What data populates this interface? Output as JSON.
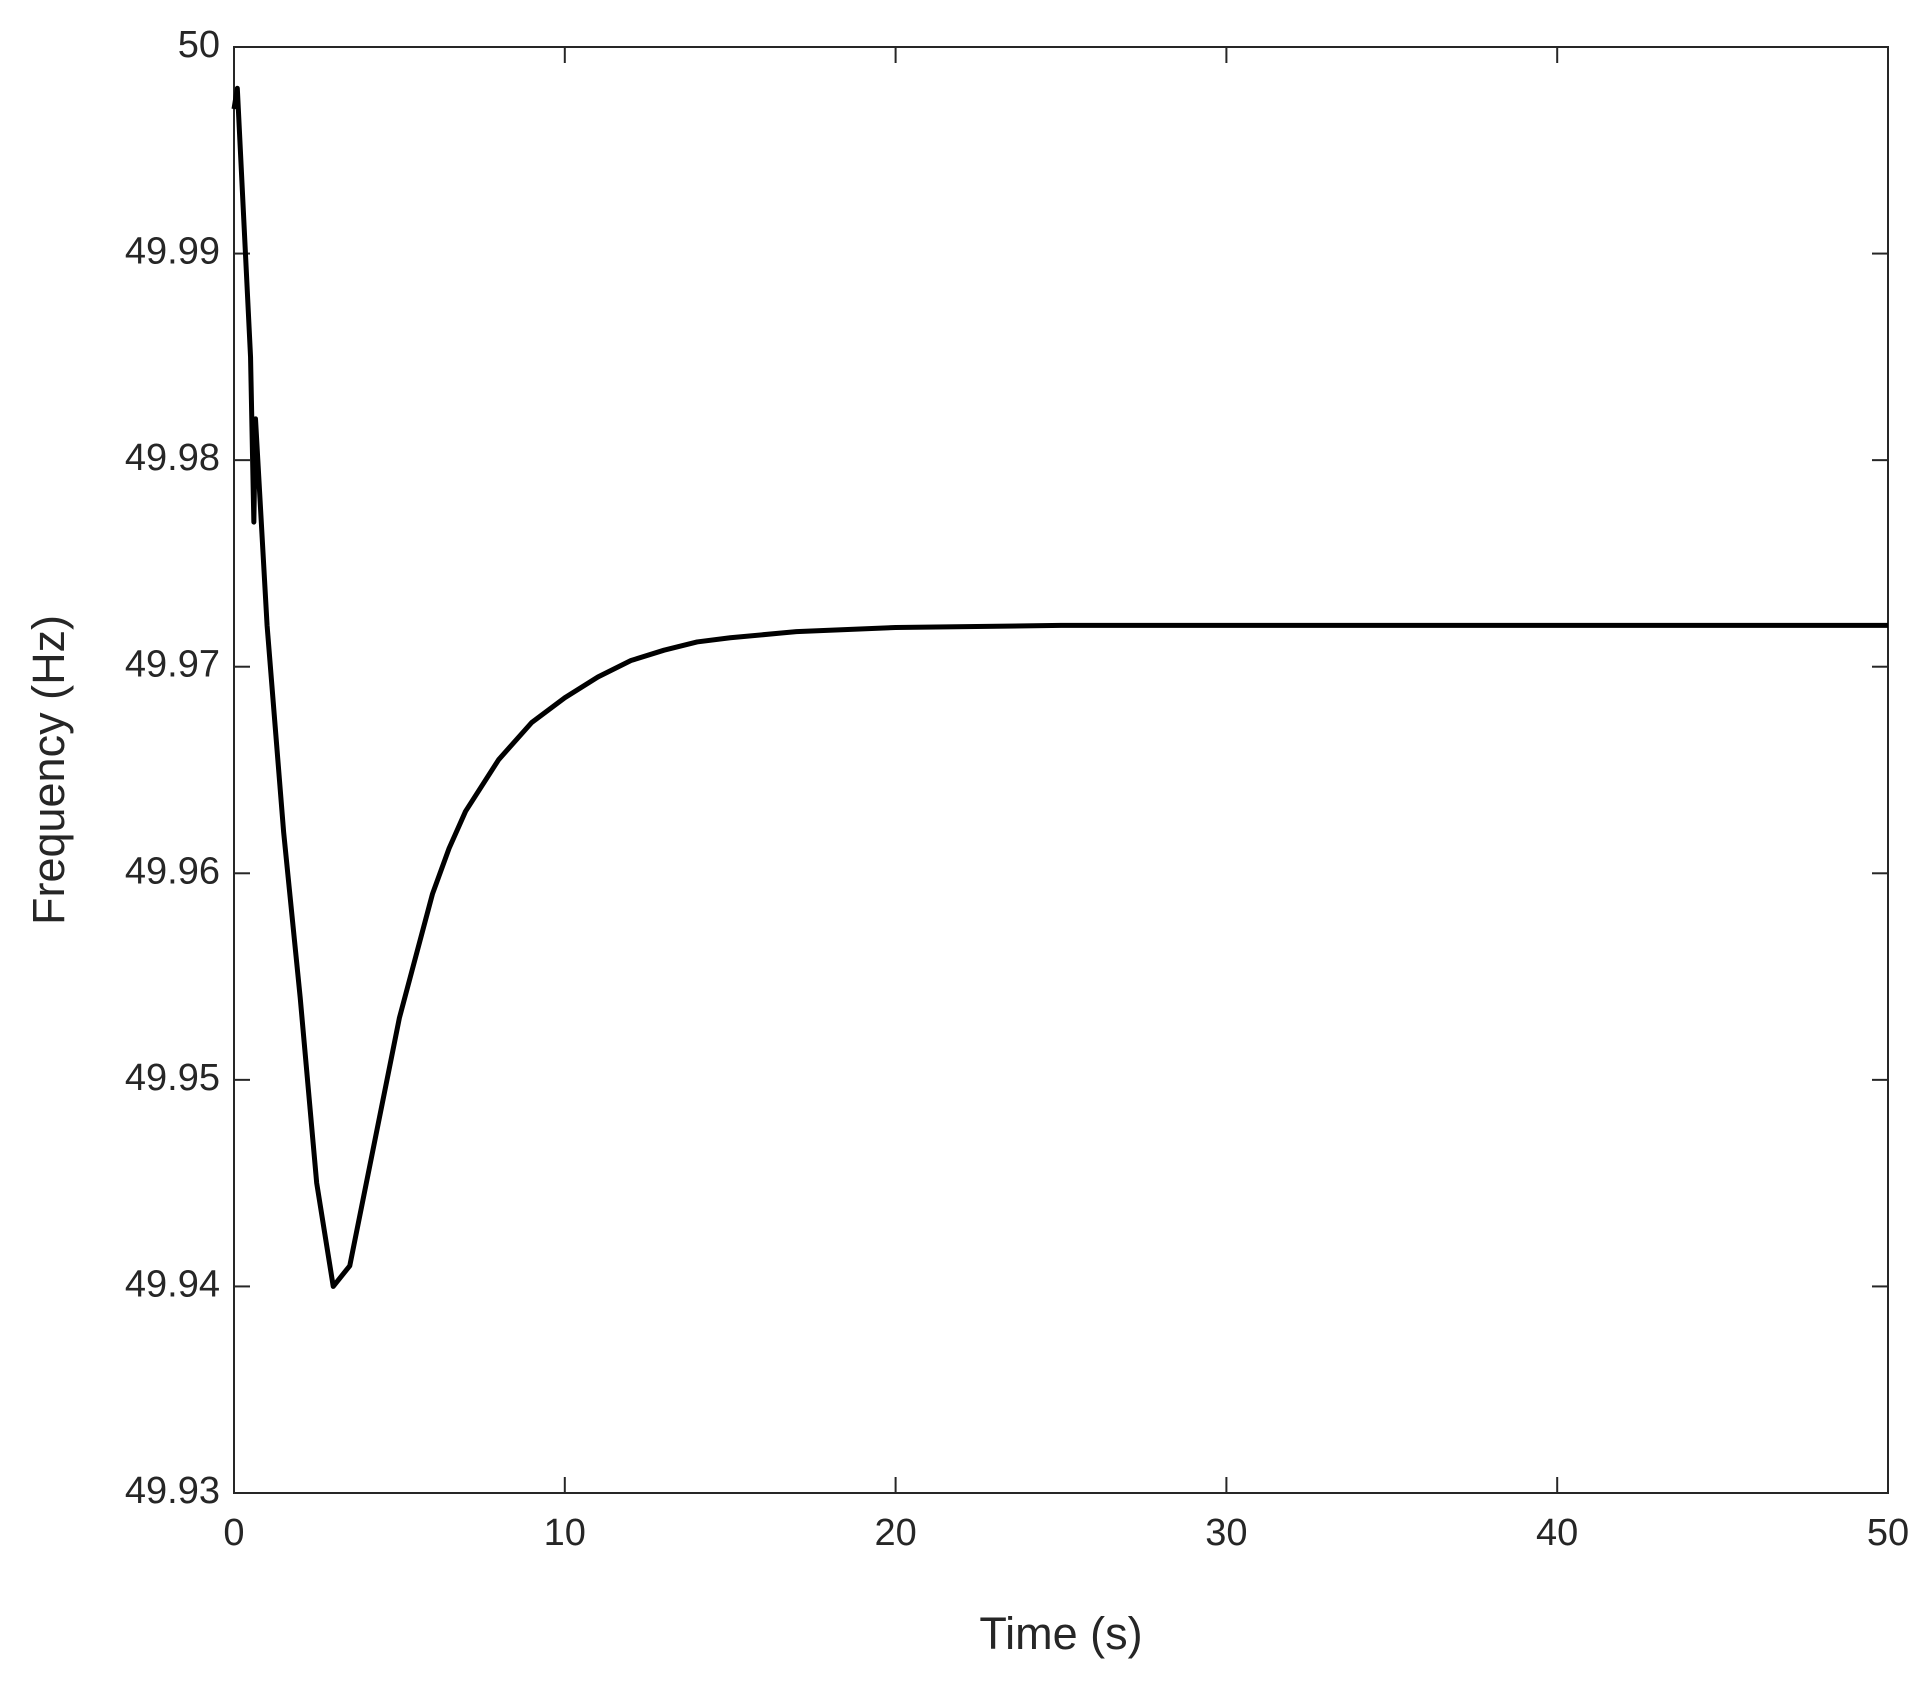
{
  "chart_data": {
    "type": "line",
    "x_label": "Time (s)",
    "y_label": "Frequency (Hz)",
    "x": [
      0,
      0.1,
      0.5,
      0.6,
      0.65,
      1,
      1.5,
      2,
      2.5,
      3,
      3.5,
      4,
      4.5,
      5,
      5.5,
      6,
      6.5,
      7,
      8,
      9,
      10,
      11,
      12,
      13,
      14,
      15,
      17,
      20,
      25,
      30,
      40,
      50
    ],
    "series": [
      {
        "name": "Frequency",
        "color": "#000000",
        "values": [
          49.997,
          49.998,
          49.985,
          49.977,
          49.982,
          49.972,
          49.962,
          49.954,
          49.945,
          49.94,
          49.941,
          49.945,
          49.949,
          49.953,
          49.956,
          49.959,
          49.9612,
          49.963,
          49.9655,
          49.9673,
          49.9685,
          49.9695,
          49.9703,
          49.9708,
          49.9712,
          49.9714,
          49.9717,
          49.9719,
          49.972,
          49.972,
          49.972,
          49.972
        ]
      }
    ],
    "xlim": [
      0,
      50
    ],
    "xticks": [
      0,
      10,
      20,
      30,
      40,
      50
    ],
    "ylim": [
      49.93,
      50
    ],
    "yticks": [
      49.93,
      49.94,
      49.95,
      49.96,
      49.97,
      49.98,
      49.99,
      50
    ],
    "grid": false
  }
}
